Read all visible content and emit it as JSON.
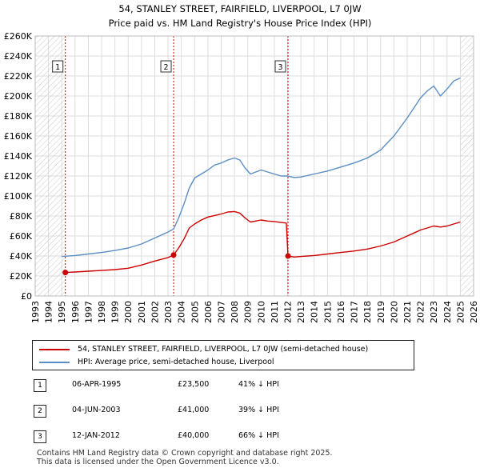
{
  "chart_data": {
    "type": "line",
    "title": "54, STANLEY STREET, FAIRFIELD, LIVERPOOL, L7 0JW",
    "subtitle": "Price paid vs. HM Land Registry's House Price Index (HPI)",
    "xlim": [
      1993,
      2026
    ],
    "ylim": [
      0,
      260000
    ],
    "x_ticks": [
      "1993",
      "1994",
      "1995",
      "1996",
      "1997",
      "1998",
      "1999",
      "2000",
      "2001",
      "2002",
      "2003",
      "2004",
      "2005",
      "2006",
      "2007",
      "2008",
      "2009",
      "2010",
      "2011",
      "2012",
      "2013",
      "2014",
      "2015",
      "2016",
      "2017",
      "2018",
      "2019",
      "2020",
      "2021",
      "2022",
      "2023",
      "2024",
      "2025",
      "2026"
    ],
    "y_ticks": [
      {
        "value": 0,
        "label": "£0"
      },
      {
        "value": 20000,
        "label": "£20K"
      },
      {
        "value": 40000,
        "label": "£40K"
      },
      {
        "value": 60000,
        "label": "£60K"
      },
      {
        "value": 80000,
        "label": "£80K"
      },
      {
        "value": 100000,
        "label": "£100K"
      },
      {
        "value": 120000,
        "label": "£120K"
      },
      {
        "value": 140000,
        "label": "£140K"
      },
      {
        "value": 160000,
        "label": "£160K"
      },
      {
        "value": 180000,
        "label": "£180K"
      },
      {
        "value": 200000,
        "label": "£200K"
      },
      {
        "value": 220000,
        "label": "£220K"
      },
      {
        "value": 240000,
        "label": "£240K"
      },
      {
        "value": 260000,
        "label": "£260K"
      }
    ],
    "hatched_ranges": [
      [
        1993,
        1995.27
      ],
      [
        2025.0,
        2026
      ]
    ],
    "series": [
      {
        "name": "54, STANLEY STREET, FAIRFIELD, LIVERPOOL, L7 0JW (semi-detached house)",
        "color": "#cc0000",
        "points": [
          [
            1995.27,
            23500
          ],
          [
            1996,
            24000
          ],
          [
            1997,
            24800
          ],
          [
            1998,
            25500
          ],
          [
            1999,
            26400
          ],
          [
            2000,
            27800
          ],
          [
            2001,
            31000
          ],
          [
            2002,
            35000
          ],
          [
            2003.0,
            38500
          ],
          [
            2003.42,
            41000
          ],
          [
            2003.8,
            48000
          ],
          [
            2004.2,
            57000
          ],
          [
            2004.6,
            68000
          ],
          [
            2005,
            72000
          ],
          [
            2005.5,
            76000
          ],
          [
            2006,
            79000
          ],
          [
            2006.5,
            80500
          ],
          [
            2007,
            82000
          ],
          [
            2007.5,
            84000
          ],
          [
            2008,
            84500
          ],
          [
            2008.4,
            83000
          ],
          [
            2008.8,
            78000
          ],
          [
            2009.2,
            74000
          ],
          [
            2009.6,
            75000
          ],
          [
            2010,
            76000
          ],
          [
            2010.5,
            75000
          ],
          [
            2011,
            74500
          ],
          [
            2011.5,
            73500
          ],
          [
            2011.9,
            73000
          ],
          [
            2012.03,
            40000
          ],
          [
            2012.5,
            39000
          ],
          [
            2013,
            39500
          ],
          [
            2014,
            40500
          ],
          [
            2015,
            42000
          ],
          [
            2016,
            43500
          ],
          [
            2017,
            45000
          ],
          [
            2018,
            47000
          ],
          [
            2019,
            50000
          ],
          [
            2020,
            54000
          ],
          [
            2021,
            60000
          ],
          [
            2021.5,
            63000
          ],
          [
            2022,
            66000
          ],
          [
            2022.5,
            68000
          ],
          [
            2023,
            70000
          ],
          [
            2023.5,
            69000
          ],
          [
            2024,
            70000
          ],
          [
            2024.5,
            72000
          ],
          [
            2025,
            74000
          ]
        ]
      },
      {
        "name": "HPI: Average price, semi-detached house, Liverpool",
        "color": "#5b8ec4",
        "points": [
          [
            1995.0,
            39500
          ],
          [
            1996,
            40500
          ],
          [
            1997,
            42000
          ],
          [
            1998,
            43500
          ],
          [
            1999,
            45500
          ],
          [
            2000,
            48000
          ],
          [
            2001,
            52000
          ],
          [
            2002,
            58000
          ],
          [
            2003,
            64000
          ],
          [
            2003.42,
            67000
          ],
          [
            2003.8,
            78000
          ],
          [
            2004.2,
            92000
          ],
          [
            2004.6,
            108000
          ],
          [
            2005,
            118000
          ],
          [
            2005.5,
            122000
          ],
          [
            2006,
            126000
          ],
          [
            2006.5,
            131000
          ],
          [
            2007,
            133000
          ],
          [
            2007.5,
            136000
          ],
          [
            2008,
            138000
          ],
          [
            2008.4,
            136000
          ],
          [
            2008.8,
            128000
          ],
          [
            2009.2,
            122000
          ],
          [
            2009.6,
            124000
          ],
          [
            2010,
            126000
          ],
          [
            2010.5,
            124000
          ],
          [
            2011,
            122000
          ],
          [
            2011.5,
            120000
          ],
          [
            2012,
            120000
          ],
          [
            2012.5,
            118500
          ],
          [
            2013,
            119000
          ],
          [
            2014,
            122000
          ],
          [
            2015,
            125000
          ],
          [
            2016,
            129000
          ],
          [
            2017,
            133000
          ],
          [
            2018,
            138000
          ],
          [
            2019,
            146000
          ],
          [
            2020,
            160000
          ],
          [
            2021,
            178000
          ],
          [
            2021.5,
            188000
          ],
          [
            2022,
            198000
          ],
          [
            2022.5,
            205000
          ],
          [
            2023,
            210000
          ],
          [
            2023.5,
            200000
          ],
          [
            2024,
            207000
          ],
          [
            2024.5,
            215000
          ],
          [
            2025,
            218000
          ]
        ]
      }
    ],
    "sales": [
      {
        "id": "1",
        "x": 1995.27,
        "y": 23500
      },
      {
        "id": "2",
        "x": 2003.42,
        "y": 41000
      },
      {
        "id": "3",
        "x": 2012.03,
        "y": 40000
      }
    ]
  },
  "legend": {
    "items": [
      {
        "label": "54, STANLEY STREET, FAIRFIELD, LIVERPOOL, L7 0JW (semi-detached house)",
        "color": "#cc0000"
      },
      {
        "label": "HPI: Average price, semi-detached house, Liverpool",
        "color": "#5b8ec4"
      }
    ]
  },
  "sales_table": [
    {
      "id": "1",
      "date": "06-APR-1995",
      "price": "£23,500",
      "hpi": "41% ↓ HPI"
    },
    {
      "id": "2",
      "date": "04-JUN-2003",
      "price": "£41,000",
      "hpi": "39% ↓ HPI"
    },
    {
      "id": "3",
      "date": "12-JAN-2012",
      "price": "£40,000",
      "hpi": "66% ↓ HPI"
    }
  ],
  "footer": {
    "line1": "Contains HM Land Registry data © Crown copyright and database right 2025.",
    "line2": "This data is licensed under the Open Government Licence v3.0."
  }
}
